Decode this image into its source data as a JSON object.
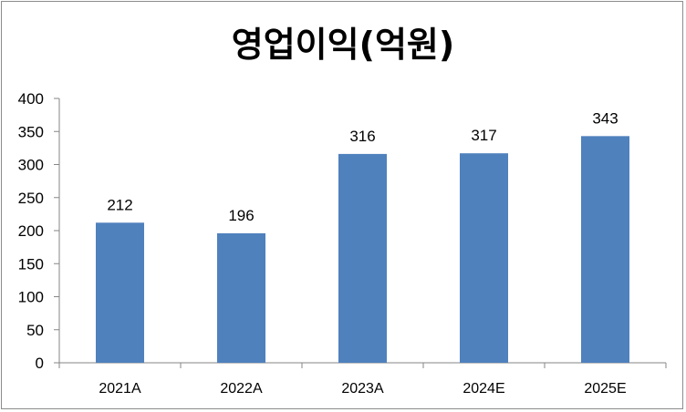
{
  "chart_data": {
    "type": "bar",
    "title": "영업이익(억원)",
    "categories": [
      "2021A",
      "2022A",
      "2023A",
      "2024E",
      "2025E"
    ],
    "values": [
      212,
      196,
      316,
      317,
      343
    ],
    "data_labels": [
      "212",
      "196",
      "316",
      "317",
      "343"
    ],
    "ylim": [
      0,
      400
    ],
    "yticks": [
      "0",
      "50",
      "100",
      "150",
      "200",
      "250",
      "300",
      "350",
      "400"
    ],
    "xlabel": "",
    "ylabel": "",
    "grid": false,
    "legend": "none",
    "bar_color": "#4F81BD"
  }
}
